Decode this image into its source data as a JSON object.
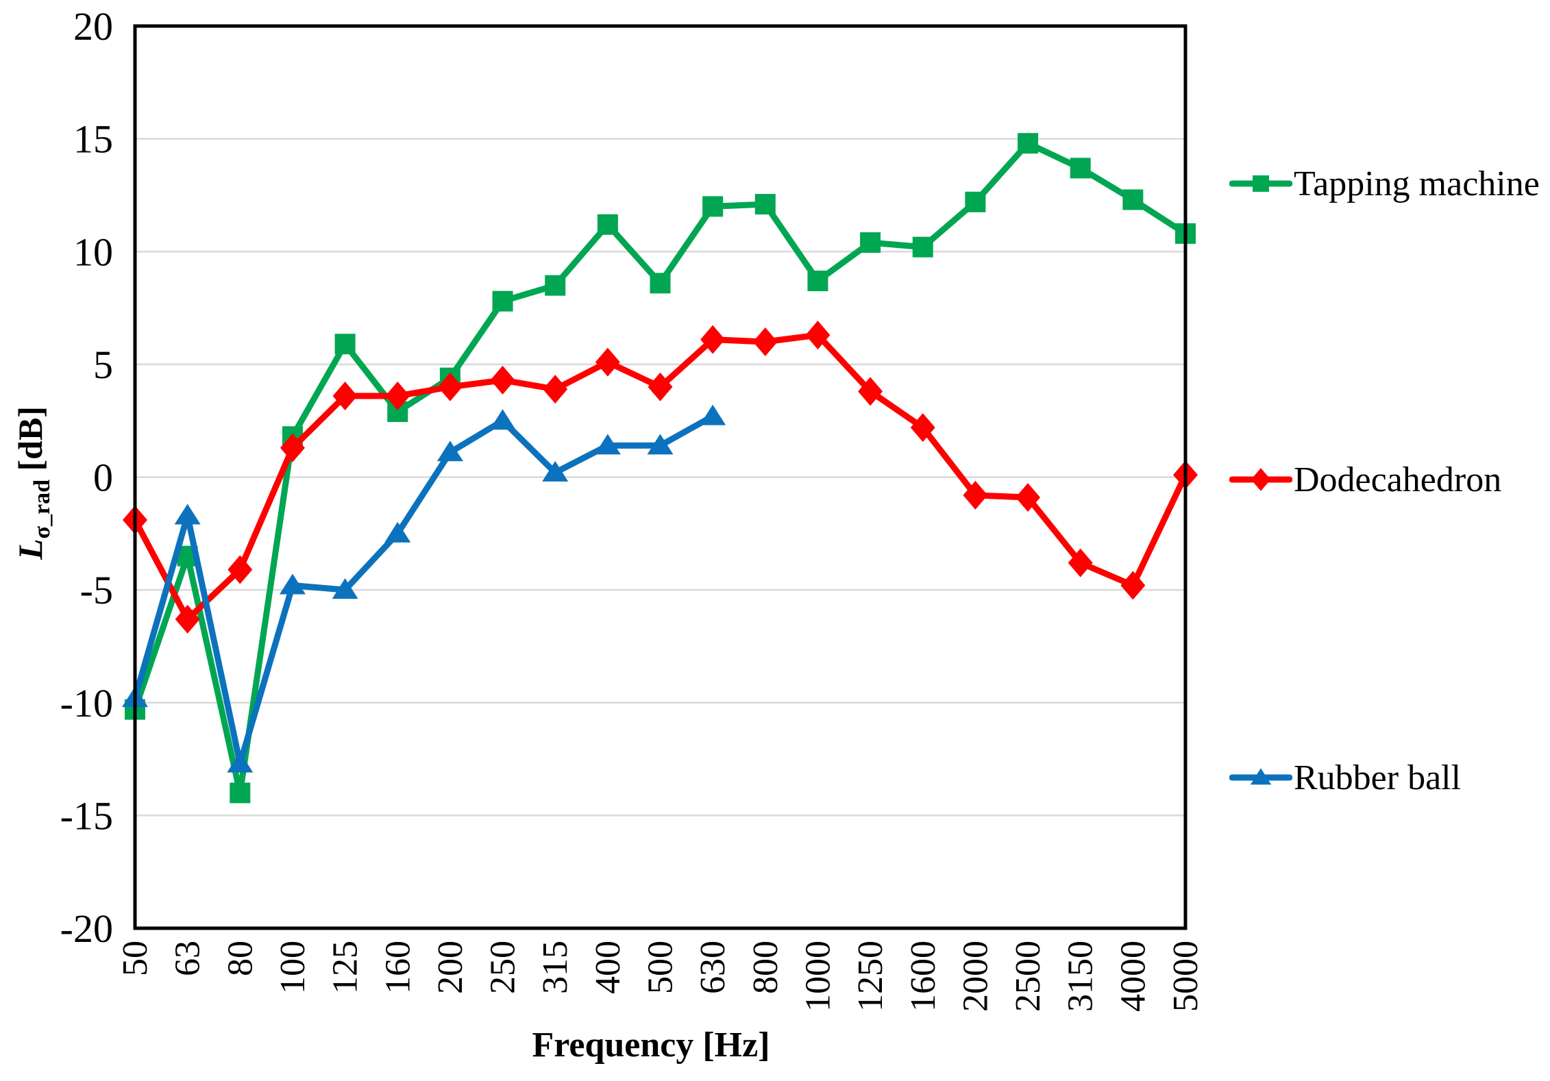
{
  "figure": {
    "background": "#FFFFFF",
    "grid_color": "#D9D9D9",
    "frame_color": "#000000"
  },
  "axes": {
    "x_title": "Frequency [Hz]",
    "y_title_main": "L",
    "y_title_sub": "σ_rad",
    "y_title_unit": " [dB]",
    "y_ticks": [
      "20",
      "15",
      "10",
      "5",
      "0",
      "-5",
      "-10",
      "-15",
      "-20"
    ],
    "y_tick_values": [
      20,
      15,
      10,
      5,
      0,
      -5,
      -10,
      -15,
      -20
    ]
  },
  "legend": {
    "items": [
      {
        "label": "Tapping machine",
        "color": "#00A651",
        "marker": "square"
      },
      {
        "label": "Dodecahedron",
        "color": "#FF0000",
        "marker": "diamond"
      },
      {
        "label": "Rubber ball",
        "color": "#0C72BD",
        "marker": "triangle"
      }
    ]
  },
  "chart_data": {
    "type": "line",
    "title": "",
    "xlabel": "Frequency [Hz]",
    "ylabel": "L_σ_rad [dB]",
    "ylim": [
      -20,
      20
    ],
    "ytick_step": 5,
    "grid": "horizontal",
    "legend_position": "right",
    "categories": [
      "50",
      "63",
      "80",
      "100",
      "125",
      "160",
      "200",
      "250",
      "315",
      "400",
      "500",
      "630",
      "800",
      "1000",
      "1250",
      "1600",
      "2000",
      "2500",
      "3150",
      "4000",
      "5000"
    ],
    "series": [
      {
        "name": "Tapping machine",
        "color": "#00A651",
        "marker": "square",
        "values": [
          -10.3,
          -3.5,
          -14.0,
          1.8,
          5.9,
          2.9,
          4.4,
          7.8,
          8.5,
          11.2,
          8.6,
          12.0,
          12.1,
          8.7,
          10.4,
          10.2,
          12.2,
          14.8,
          13.7,
          12.3,
          10.8
        ]
      },
      {
        "name": "Dodecahedron",
        "color": "#FF0000",
        "marker": "diamond",
        "values": [
          -1.9,
          -6.3,
          -4.1,
          1.3,
          3.6,
          3.6,
          4.0,
          4.3,
          3.9,
          5.1,
          4.0,
          6.1,
          6.0,
          6.3,
          3.8,
          2.2,
          -0.8,
          -0.9,
          -3.8,
          -4.8,
          0.1
        ]
      },
      {
        "name": "Rubber ball",
        "color": "#0C72BD",
        "marker": "triangle",
        "values": [
          -9.8,
          -1.7,
          -12.7,
          -4.8,
          -5.0,
          -2.5,
          1.1,
          2.5,
          0.2,
          1.4,
          1.4,
          2.7
        ]
      }
    ]
  }
}
